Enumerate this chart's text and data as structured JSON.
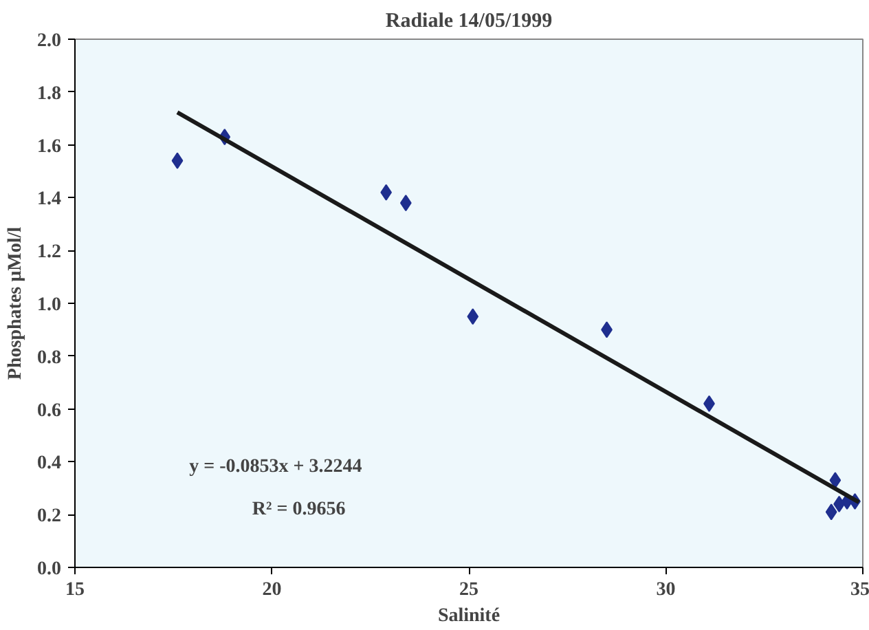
{
  "chart_data": {
    "type": "scatter",
    "title": "Radiale 14/05/1999",
    "xlabel": "Salinité",
    "ylabel": "Phosphates µMol/l",
    "series": [
      {
        "color": "#1f2f8f",
        "marker": "diamond",
        "x": [
          17.6,
          18.8,
          22.9,
          23.4,
          25.1,
          28.5,
          31.1,
          34.3,
          34.2,
          34.4,
          34.6,
          34.8
        ],
        "values": [
          1.54,
          1.63,
          1.42,
          1.38,
          0.95,
          0.9,
          0.62,
          0.33,
          0.21,
          0.24,
          0.25,
          0.25
        ]
      },
      {
        "type": "line",
        "color": "#1a1a1a",
        "x": [
          17.6,
          34.9
        ],
        "values": [
          1.723,
          0.247
        ]
      }
    ],
    "annotations": [
      "y = -0.0853x + 3.2244",
      "R² = 0.9656"
    ],
    "xlim": [
      15,
      35
    ],
    "xticks": [
      15,
      20,
      25,
      30,
      35
    ],
    "ylim": [
      0,
      2
    ],
    "yticks": [
      {
        "value": 0,
        "label": "0.0"
      },
      {
        "value": 0.2,
        "label": "0.2"
      },
      {
        "value": 0.4,
        "label": "0.4"
      },
      {
        "value": 0.6,
        "label": "0.6"
      },
      {
        "value": 0.8,
        "label": "0.8"
      },
      {
        "value": 1,
        "label": "1.0"
      },
      {
        "value": 1.2,
        "label": "1.2"
      },
      {
        "value": 1.4,
        "label": "1.4"
      },
      {
        "value": 1.6,
        "label": "1.6"
      },
      {
        "value": 1.8,
        "label": "1.8"
      },
      {
        "value": 2,
        "label": "2.0"
      }
    ],
    "grid": false
  }
}
